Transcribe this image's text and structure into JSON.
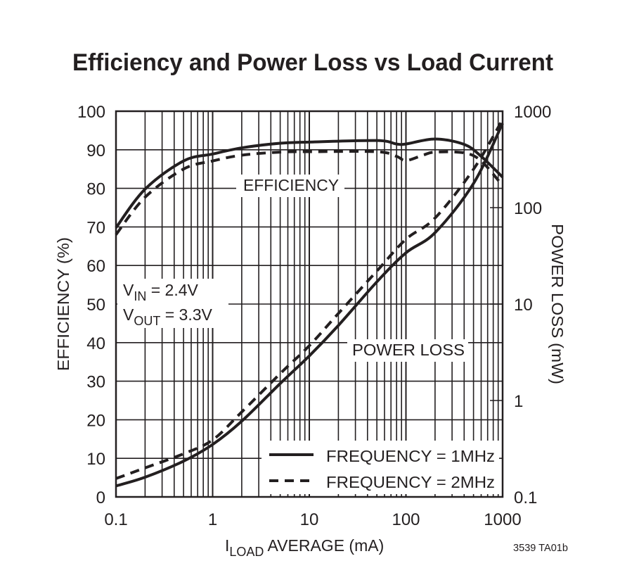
{
  "chart_data": {
    "type": "line",
    "title": "Efficiency and Power Loss vs Load Current",
    "xlabel": {
      "main": "I",
      "sub": "LOAD",
      "rest": " AVERAGE (mA)"
    },
    "ylabel": "EFFICIENCY (%)",
    "y2label": "POWER LOSS (mW)",
    "xscale": "log",
    "xlim": [
      0.1,
      1000
    ],
    "ylim": [
      0,
      100
    ],
    "y2scale": "log",
    "y2lim": [
      0.1,
      1000
    ],
    "grid": true,
    "x_tick_labels": [
      "0.1",
      "1",
      "10",
      "100",
      "1000"
    ],
    "y_tick_labels": [
      "0",
      "10",
      "20",
      "30",
      "40",
      "50",
      "60",
      "70",
      "80",
      "90",
      "100"
    ],
    "y2_tick_labels": [
      "0.1",
      "1",
      "10",
      "100",
      "1000"
    ],
    "annotations": {
      "efficiency": "EFFICIENCY",
      "power_loss": "POWER LOSS",
      "vin": {
        "main": "V",
        "sub": "IN",
        "rest": " = 2.4V"
      },
      "vout": {
        "main": "V",
        "sub": "OUT",
        "rest": " = 3.3V"
      }
    },
    "legend": [
      "FREQUENCY = 1MHz",
      "FREQUENCY = 2MHz"
    ],
    "legend_position": "bottom-right",
    "figure_code": "3539 TA01b",
    "series": [
      {
        "name": "FREQUENCY = 1MHz",
        "quantity": "efficiency",
        "axis": "left",
        "style": "solid",
        "x": [
          0.1,
          0.2,
          0.5,
          1,
          2,
          5,
          10,
          50,
          80,
          100,
          200,
          400,
          600,
          1000
        ],
        "y": [
          69.8,
          79.8,
          87.1,
          88.9,
          90.5,
          91.7,
          92.0,
          92.4,
          91.5,
          91.5,
          92.8,
          91.4,
          88.3,
          82.9
        ]
      },
      {
        "name": "FREQUENCY = 2MHz",
        "quantity": "efficiency",
        "axis": "left",
        "style": "dashed",
        "x": [
          0.1,
          0.2,
          0.5,
          1,
          2,
          5,
          10,
          50,
          80,
          100,
          150,
          200,
          400,
          600,
          1000
        ],
        "y": [
          68.0,
          77.7,
          85.0,
          87.1,
          88.6,
          89.4,
          89.5,
          89.5,
          88.3,
          87.2,
          88.6,
          89.4,
          89.2,
          87.1,
          80.7
        ]
      },
      {
        "name": "FREQUENCY = 1MHz",
        "quantity": "power_loss",
        "axis": "right",
        "style": "solid",
        "x": [
          0.1,
          0.2,
          0.5,
          1,
          2,
          5,
          10,
          20,
          50,
          100,
          200,
          500,
          1000
        ],
        "y": [
          0.13,
          0.16,
          0.235,
          0.35,
          0.61,
          1.5,
          2.9,
          6.0,
          17,
          34,
          55,
          178,
          750
        ]
      },
      {
        "name": "FREQUENCY = 2MHz",
        "quantity": "power_loss",
        "axis": "right",
        "style": "dashed",
        "x": [
          0.1,
          0.2,
          0.5,
          1,
          2,
          5,
          10,
          20,
          50,
          100,
          200,
          500,
          1000
        ],
        "y": [
          0.155,
          0.2,
          0.28,
          0.39,
          0.76,
          1.9,
          3.7,
          8.0,
          22,
          47,
          78,
          250,
          820
        ]
      }
    ],
    "colors": {
      "ink": "#231f20",
      "background": "#ffffff"
    }
  }
}
